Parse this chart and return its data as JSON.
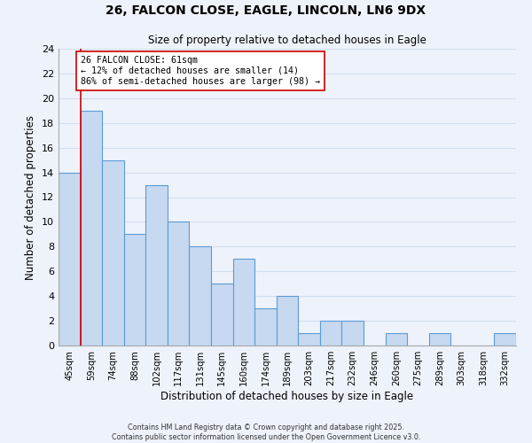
{
  "title": "26, FALCON CLOSE, EAGLE, LINCOLN, LN6 9DX",
  "subtitle": "Size of property relative to detached houses in Eagle",
  "xlabel": "Distribution of detached houses by size in Eagle",
  "ylabel": "Number of detached properties",
  "bar_color": "#c6d9f0",
  "bar_edge_color": "#5b9bd5",
  "categories": [
    "45sqm",
    "59sqm",
    "74sqm",
    "88sqm",
    "102sqm",
    "117sqm",
    "131sqm",
    "145sqm",
    "160sqm",
    "174sqm",
    "189sqm",
    "203sqm",
    "217sqm",
    "232sqm",
    "246sqm",
    "260sqm",
    "275sqm",
    "289sqm",
    "303sqm",
    "318sqm",
    "332sqm"
  ],
  "values": [
    14,
    19,
    15,
    9,
    13,
    10,
    8,
    5,
    7,
    3,
    4,
    1,
    2,
    2,
    0,
    1,
    0,
    1,
    0,
    0,
    1
  ],
  "ylim": [
    0,
    24
  ],
  "yticks": [
    0,
    2,
    4,
    6,
    8,
    10,
    12,
    14,
    16,
    18,
    20,
    22,
    24
  ],
  "vline_x": 0.5,
  "vline_color": "#cc0000",
  "annotation_line1": "26 FALCON CLOSE: 61sqm",
  "annotation_line2": "← 12% of detached houses are smaller (14)",
  "annotation_line3": "86% of semi-detached houses are larger (98) →",
  "footer_text": "Contains HM Land Registry data © Crown copyright and database right 2025.\nContains public sector information licensed under the Open Government Licence v3.0.",
  "grid_color": "#d0dff0",
  "background_color": "#eef2fa"
}
